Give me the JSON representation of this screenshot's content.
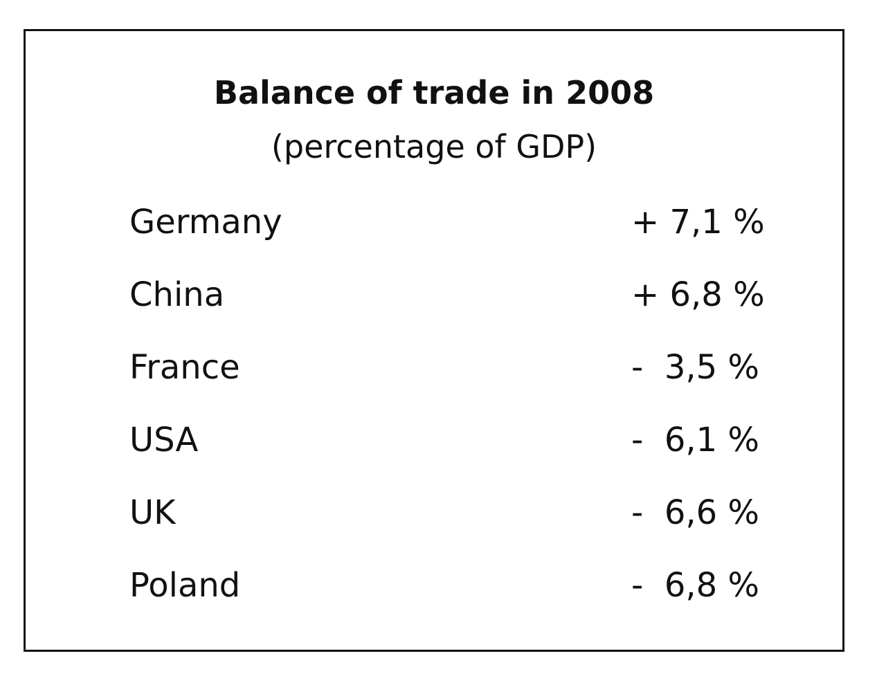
{
  "header": {
    "title": "Balance of trade in 2008",
    "subtitle": "(percentage of GDP)"
  },
  "table": {
    "rows": [
      [
        "Germany",
        "+ 7,1 %"
      ],
      [
        "China",
        "+ 6,8 %"
      ],
      [
        "France",
        "-  3,5 %"
      ],
      [
        "USA",
        "-  6,1 %"
      ],
      [
        "UK",
        "-  6,6 %"
      ],
      [
        "Poland",
        "-  6,8 %"
      ]
    ]
  }
}
